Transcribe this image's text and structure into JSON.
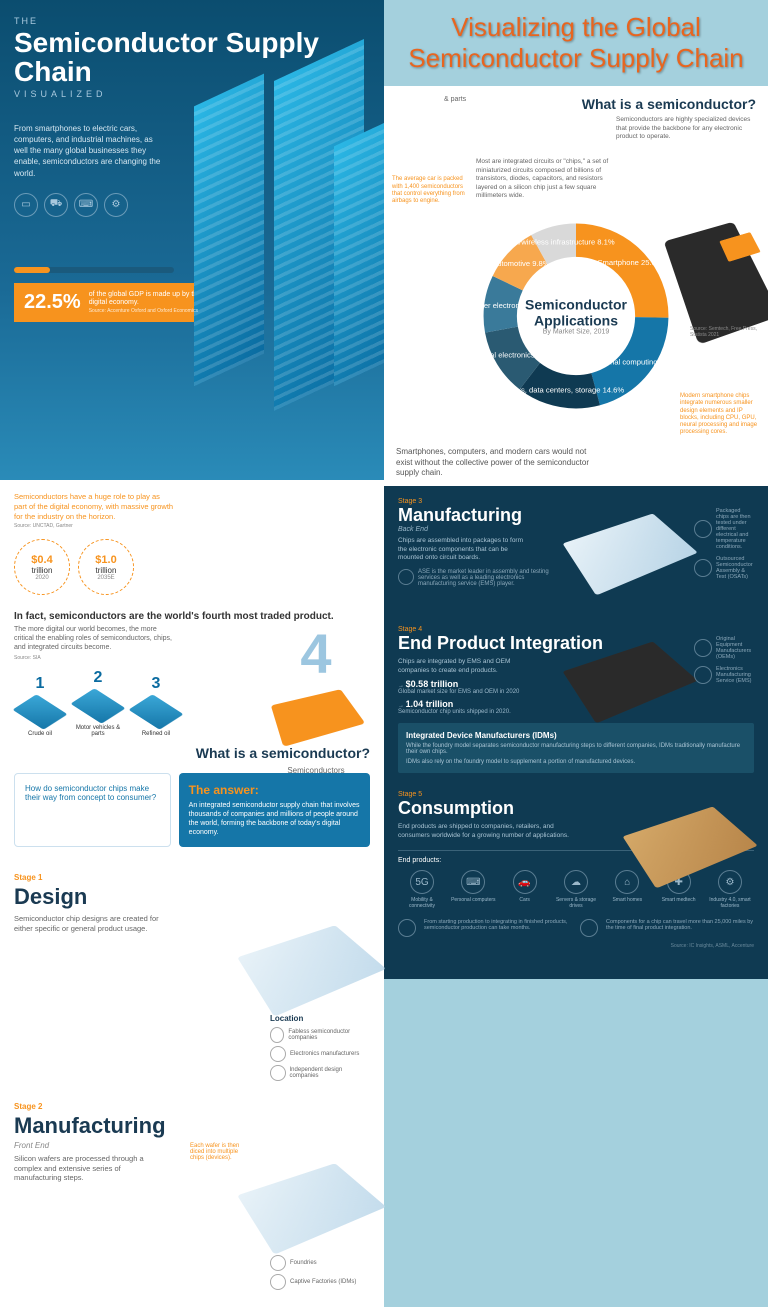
{
  "title_right": "Visualizing the Global Semiconductor Supply Chain",
  "hero": {
    "pre": "THE",
    "title": "Semiconductor Supply Chain",
    "viz": "VISUALIZED",
    "intro": "From smartphones to electric cars, computers, and industrial machines, as well the many global businesses they enable, semiconductors are changing the world.",
    "pct": "22.5%",
    "pct_txt": "of the global GDP is made up by the global digital economy.",
    "pct_src": "Source: Accenture Oxford and Oxford Economics"
  },
  "mid": {
    "note": "Semiconductors have a huge role to play as part of the digital economy, with massive growth for the industry on the horizon.",
    "src": "Source: UNCTAD, Gartner",
    "circ1_v": "$0.4",
    "circ1_u": "trillion",
    "circ1_y": "2020",
    "circ2_v": "$1.0",
    "circ2_u": "trillion",
    "circ2_y": "2035E",
    "fourth_h": "In fact, semiconductors are the world's fourth most traded product.",
    "fourth_p": "The more digital our world becomes, the more critical the enabling roles of semiconductors, chips, and integrated circuits become.",
    "fourth_src": "Source: SIA",
    "ranks": [
      {
        "n": "1",
        "l": "Crude oil"
      },
      {
        "n": "2",
        "l": "Motor vehicles & parts"
      },
      {
        "n": "3",
        "l": "Refined oil"
      }
    ],
    "big4": "4",
    "big4_l": "Semiconductors",
    "wis": "What is a semiconductor?",
    "q": "How do semiconductor chips make their way from concept to consumer?",
    "a_h": "The answer:",
    "a_p": "An integrated semiconductor supply chain that involves thousands of companies and millions of people around the world, forming the backbone of today's digital economy."
  },
  "s1": {
    "lbl": "Stage 1",
    "h": "Design",
    "p": "Semiconductor chip designs are created for either specific or general product usage.",
    "loc_h": "Location",
    "loc": [
      "Fabless semiconductor companies",
      "Electronics manufacturers",
      "Independent design companies"
    ]
  },
  "s2": {
    "lbl": "Stage 2",
    "h": "Manufacturing",
    "sub": "Front End",
    "p": "Silicon wafers are processed through a complex and extensive series of manufacturing steps.",
    "cap": "Each wafer is then diced into multiple chips (devices).",
    "loc": [
      "Foundries",
      "Captive Factories (IDMs)"
    ]
  },
  "donut": {
    "wis_h": "What is a semiconductor?",
    "wis_p1": "Semiconductors are highly specialized devices that provide the backbone for any electronic product to operate.",
    "wis_p2": "Most are integrated circuits or \"chips,\" a set of miniaturized circuits composed of billions of transistors, diodes, capacitors, and resistors layered on a silicon chip just a few square millimeters wide.",
    "center_t": "Semiconductor Applications",
    "center_s": "By Market Size, 2019",
    "parts_l": "& parts",
    "segs": [
      {
        "l": "Smartphone",
        "v": 25.3,
        "c": "#f7931e"
      },
      {
        "l": "Personal computing",
        "v": 20.5,
        "c": "#1576a8"
      },
      {
        "l": "Servers, data centers, storage",
        "v": 14.6,
        "c": "#0f3a52"
      },
      {
        "l": "Industrial electronics",
        "v": 11.7,
        "c": "#2a5a72"
      },
      {
        "l": "Consumer electronics",
        "v": 10.0,
        "c": "#3a7a9a"
      },
      {
        "l": "Automotive",
        "v": 9.8,
        "c": "#f7a84e"
      },
      {
        "l": "Wired/wireless infrastructure",
        "v": 8.1,
        "c": "#d9d9d9"
      }
    ],
    "car_note": "The average car is packed with 1,400 semiconductors that control everything from airbags to engine.",
    "phone_note": "Modern smartphone chips integrate numerous smaller design elements and IP blocks, including CPU, GPU, neural processing and image processing cores.",
    "phone_src": "Source: Semtech, Free Press, Statista 2021",
    "btm": "Smartphones, computers, and modern cars would not exist without the collective power of the semiconductor supply chain."
  },
  "s3": {
    "lbl": "Stage 3",
    "h": "Manufacturing",
    "sub": "Back End",
    "p": "Chips are assembled into packages to form the electronic components that can be mounted onto circuit boards.",
    "asml": "ASE is the market leader in assembly and testing services as well as a leading electronics manufacturing service (EMS) player.",
    "side": [
      "Packaged chips are then tested under different electrical and temperature conditions.",
      "Outsourced Semiconductor Assembly & Test (OSATs)"
    ]
  },
  "s4": {
    "lbl": "Stage 4",
    "h": "End Product Integration",
    "p": "Chips are integrated by EMS and OEM companies to create end products.",
    "stat1_v": "$0.58 trillion",
    "stat1_t": "Global market size for EMS and OEM in 2020",
    "stat2_v": "1.04 trillion",
    "stat2_t": "Semiconductor chip units shipped in 2020.",
    "side": [
      "Original Equipment Manufacturers (OEMs)",
      "Electronics Manufacturing Service (EMS)"
    ],
    "idm_h": "Integrated Device Manufacturers (IDMs)",
    "idm_p1": "While the foundry model separates semiconductor manufacturing steps to different companies, IDMs traditionally manufacture their own chips.",
    "idm_p2": "IDMs also rely on the foundry model to supplement a portion of manufactured devices."
  },
  "s5": {
    "lbl": "Stage 5",
    "h": "Consumption",
    "p": "End products are shipped to companies, retailers, and consumers worldwide for a growing number of applications.",
    "ep_h": "End products:",
    "ep": [
      {
        "i": "5G",
        "l": "Mobility & connectivity"
      },
      {
        "i": "⌨",
        "l": "Personal computers"
      },
      {
        "i": "🚗",
        "l": "Cars"
      },
      {
        "i": "☁",
        "l": "Servers & storage drives"
      },
      {
        "i": "⌂",
        "l": "Smart homes"
      },
      {
        "i": "✚",
        "l": "Smart medtech"
      },
      {
        "i": "⚙",
        "l": "Industry 4.0, smart factories"
      }
    ],
    "foot1": "From starting production to integrating in finished products, semiconductor production can take months.",
    "foot2": "Components for a chip can travel more than 25,000 miles by the time of final product integration.",
    "src": "Source: IC Insights, ASML, Accenture"
  }
}
